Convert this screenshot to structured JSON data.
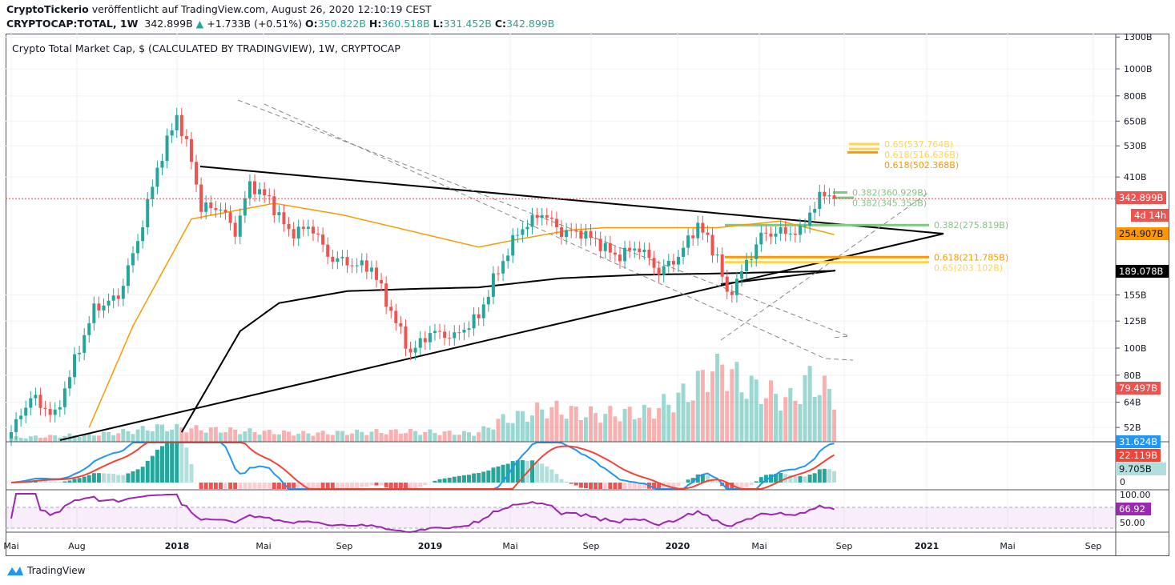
{
  "header": {
    "author": "CryptoTickerio",
    "published": "veröffentlicht auf TradingView.com, August 26, 2020 12:10:19 CEST",
    "symbol": "CRYPTOCAP:TOTAL, 1W",
    "last": "342.899B",
    "change": "+1.733B (+0.51%)",
    "o_label": "O:",
    "o": "350.822B",
    "h_label": "H:",
    "h": "360.518B",
    "l_label": "L:",
    "l": "331.452B",
    "c_label": "C:",
    "c": "342.899B"
  },
  "chart_title": "Crypto Total Market Cap, $ (CALCULATED BY TRADINGVIEW), 1W, CRYPTOCAP",
  "price_axis": [
    "1300B",
    "1000B",
    "800B",
    "650B",
    "530B",
    "410B",
    "155B",
    "125B",
    "100B",
    "80B",
    "64B",
    "52B"
  ],
  "price_axis_values": [
    1300,
    1000,
    800,
    650,
    530,
    410,
    155,
    125,
    100,
    80,
    64,
    52
  ],
  "price_labels": {
    "last": "342.899B",
    "countdown": "4d 14h",
    "ma50": "254.907B",
    "ma200": "189.078B",
    "volume": "79.497B",
    "macd": "31.624B",
    "signal": "22.119B",
    "hist": "9.705B",
    "macd_zero": "0",
    "rsi_top": "100.00",
    "rsi": "66.92",
    "rsi_mid": "50.00"
  },
  "fib_labels": [
    {
      "text": "0.65(537.764B)",
      "value": 537.764,
      "color": "#ffd54f"
    },
    {
      "text": "0.618(516.636B)",
      "value": 516.636,
      "color": "#ffd54f"
    },
    {
      "text": "0.618(502.368B)",
      "value": 502.368,
      "color": "#ff9800"
    },
    {
      "text": "0.382(360.929B)",
      "value": 360.929,
      "color": "#81c784"
    },
    {
      "text": "0.382(345.353B)",
      "value": 345.353,
      "color": "#81c784"
    },
    {
      "text": "0.382(275.819B)",
      "value": 275.819,
      "color": "#81c784"
    },
    {
      "text": "0.618(211.785B)",
      "value": 211.785,
      "color": "#ff9800"
    },
    {
      "text": "0.65(203.102B)",
      "value": 203.102,
      "color": "#ffd54f"
    }
  ],
  "time_axis": [
    "Mai",
    "Aug",
    "2018",
    "Mai",
    "Sep",
    "2019",
    "Mai",
    "Sep",
    "2020",
    "Mai",
    "Sep",
    "2021",
    "Mai",
    "Sep"
  ],
  "logo_text": "TradingView",
  "colors": {
    "up": "#26a69a",
    "down": "#ef5350",
    "ma50": "#ff9800",
    "ma200": "#000000",
    "macd": "#2196f3",
    "signal": "#f44336",
    "rsi": "#9c27b0"
  },
  "chart_data": {
    "type": "candlestick",
    "unit": "B USD",
    "scale": "log",
    "x_unit": "weeks since May 2017",
    "closes": [
      [
        0,
        50
      ],
      [
        4,
        67
      ],
      [
        9,
        57
      ],
      [
        13,
        90
      ],
      [
        17,
        138
      ],
      [
        22,
        153
      ],
      [
        26,
        243
      ],
      [
        30,
        441
      ],
      [
        34,
        680
      ],
      [
        37,
        470
      ],
      [
        39,
        318
      ],
      [
        43,
        318
      ],
      [
        46,
        260
      ],
      [
        49,
        387
      ],
      [
        53,
        340
      ],
      [
        57,
        260
      ],
      [
        62,
        270
      ],
      [
        65,
        213
      ],
      [
        70,
        200
      ],
      [
        74,
        194
      ],
      [
        78,
        135
      ],
      [
        82,
        96
      ],
      [
        86,
        114
      ],
      [
        91,
        110
      ],
      [
        96,
        130
      ],
      [
        99,
        175
      ],
      [
        104,
        260
      ],
      [
        109,
        306
      ],
      [
        113,
        260
      ],
      [
        117,
        260
      ],
      [
        121,
        236
      ],
      [
        124,
        213
      ],
      [
        129,
        230
      ],
      [
        133,
        187
      ],
      [
        137,
        213
      ],
      [
        141,
        278
      ],
      [
        145,
        213
      ],
      [
        147,
        153
      ],
      [
        150,
        187
      ],
      [
        154,
        253
      ],
      [
        157,
        260
      ],
      [
        162,
        260
      ],
      [
        164,
        306
      ],
      [
        167,
        362
      ],
      [
        169,
        343
      ]
    ],
    "ma50": [
      [
        16,
        52
      ],
      [
        25,
        120
      ],
      [
        37,
        290
      ],
      [
        54,
        330
      ],
      [
        68,
        300
      ],
      [
        96,
        230
      ],
      [
        104,
        245
      ],
      [
        115,
        265
      ],
      [
        122,
        270
      ],
      [
        145,
        270
      ],
      [
        158,
        285
      ],
      [
        169,
        255
      ]
    ],
    "ma200": [
      [
        35,
        50
      ],
      [
        47,
        115
      ],
      [
        55,
        145
      ],
      [
        69,
        160
      ],
      [
        83,
        163
      ],
      [
        96,
        165
      ],
      [
        113,
        178
      ],
      [
        129,
        183
      ],
      [
        145,
        185
      ],
      [
        169,
        189
      ]
    ],
    "volume": [
      [
        0,
        2
      ],
      [
        20,
        4
      ],
      [
        30,
        7
      ],
      [
        40,
        6
      ],
      [
        60,
        4
      ],
      [
        80,
        5
      ],
      [
        95,
        4
      ],
      [
        100,
        10
      ],
      [
        110,
        16
      ],
      [
        120,
        13
      ],
      [
        130,
        14
      ],
      [
        140,
        25
      ],
      [
        145,
        40
      ],
      [
        150,
        28
      ],
      [
        160,
        20
      ],
      [
        164,
        30
      ],
      [
        169,
        22
      ]
    ]
  }
}
